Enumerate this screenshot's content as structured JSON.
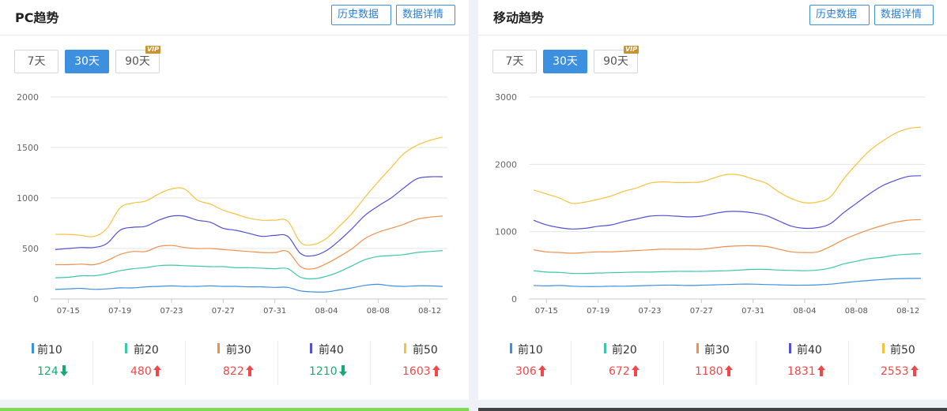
{
  "colors": {
    "top10": "#3d8fe0",
    "top20": "#3cc8a8",
    "top30": "#f0904c",
    "top40": "#5050d8",
    "top50": "#f5c23c",
    "up": "#f04848",
    "down": "#19a974",
    "accent": "#3d8fe0"
  },
  "pc": {
    "title": "PC趋势",
    "history_label": "历史数据",
    "detail_label": "数据详情",
    "periods": [
      "7天",
      "30天",
      "90天"
    ],
    "vip_label": "VIP",
    "legend": [
      {
        "label": "前10",
        "value": "124",
        "trend": "down"
      },
      {
        "label": "前20",
        "value": "480",
        "trend": "up"
      },
      {
        "label": "前30",
        "value": "822",
        "trend": "up"
      },
      {
        "label": "前40",
        "value": "1210",
        "trend": "down"
      },
      {
        "label": "前50",
        "value": "1603",
        "trend": "up"
      }
    ]
  },
  "mobile": {
    "title": "移动趋势",
    "history_label": "历史数据",
    "detail_label": "数据详情",
    "periods": [
      "7天",
      "30天",
      "90天"
    ],
    "vip_label": "VIP",
    "legend": [
      {
        "label": "前10",
        "value": "306",
        "trend": "up"
      },
      {
        "label": "前20",
        "value": "672",
        "trend": "up"
      },
      {
        "label": "前30",
        "value": "1180",
        "trend": "up"
      },
      {
        "label": "前40",
        "value": "1831",
        "trend": "up"
      },
      {
        "label": "前50",
        "value": "2553",
        "trend": "up"
      }
    ]
  },
  "chart_data": [
    {
      "type": "line",
      "title": "PC趋势",
      "ylim": [
        0,
        2000
      ],
      "yticks": [
        "0",
        "500",
        "1000",
        "1500",
        "2000"
      ],
      "x_tick_labels": [
        "07-15",
        "07-19",
        "07-23",
        "07-27",
        "07-31",
        "08-04",
        "08-08",
        "08-12"
      ],
      "x": [
        "07-14",
        "07-15",
        "07-16",
        "07-17",
        "07-18",
        "07-19",
        "07-20",
        "07-21",
        "07-22",
        "07-23",
        "07-24",
        "07-25",
        "07-26",
        "07-27",
        "07-28",
        "07-29",
        "07-30",
        "07-31",
        "08-01",
        "08-02",
        "08-03",
        "08-04",
        "08-05",
        "08-06",
        "08-07",
        "08-08",
        "08-09",
        "08-10",
        "08-11",
        "08-12",
        "08-13"
      ],
      "grid": true,
      "series": [
        {
          "name": "前10",
          "values": [
            95,
            100,
            105,
            95,
            100,
            110,
            110,
            120,
            125,
            130,
            125,
            125,
            130,
            125,
            125,
            120,
            120,
            115,
            115,
            80,
            70,
            70,
            90,
            110,
            135,
            145,
            130,
            125,
            130,
            130,
            124
          ]
        },
        {
          "name": "前20",
          "values": [
            210,
            215,
            230,
            230,
            250,
            280,
            300,
            310,
            330,
            335,
            330,
            325,
            320,
            320,
            310,
            310,
            305,
            300,
            300,
            215,
            200,
            225,
            270,
            330,
            390,
            420,
            430,
            440,
            460,
            470,
            480
          ]
        },
        {
          "name": "前30",
          "values": [
            340,
            340,
            345,
            340,
            380,
            440,
            470,
            470,
            520,
            530,
            510,
            500,
            500,
            490,
            480,
            470,
            460,
            460,
            470,
            320,
            300,
            350,
            420,
            500,
            600,
            660,
            700,
            740,
            790,
            810,
            822
          ]
        },
        {
          "name": "前40",
          "values": [
            490,
            500,
            510,
            510,
            550,
            680,
            710,
            720,
            780,
            820,
            820,
            780,
            760,
            700,
            680,
            650,
            620,
            630,
            620,
            450,
            430,
            480,
            580,
            700,
            830,
            920,
            1000,
            1100,
            1190,
            1210,
            1210
          ]
        },
        {
          "name": "前50",
          "values": [
            640,
            640,
            630,
            620,
            700,
            900,
            950,
            970,
            1040,
            1090,
            1090,
            980,
            940,
            880,
            840,
            800,
            780,
            780,
            770,
            560,
            540,
            600,
            720,
            850,
            1010,
            1160,
            1300,
            1440,
            1520,
            1570,
            1603
          ]
        }
      ]
    },
    {
      "type": "line",
      "title": "移动趋势",
      "ylim": [
        0,
        3000
      ],
      "yticks": [
        "0",
        "1000",
        "2000",
        "3000"
      ],
      "x_tick_labels": [
        "07-15",
        "07-19",
        "07-23",
        "07-27",
        "07-31",
        "08-04",
        "08-08",
        "08-12"
      ],
      "x": [
        "07-14",
        "07-15",
        "07-16",
        "07-17",
        "07-18",
        "07-19",
        "07-20",
        "07-21",
        "07-22",
        "07-23",
        "07-24",
        "07-25",
        "07-26",
        "07-27",
        "07-28",
        "07-29",
        "07-30",
        "07-31",
        "08-01",
        "08-02",
        "08-03",
        "08-04",
        "08-05",
        "08-06",
        "08-07",
        "08-08",
        "08-09",
        "08-10",
        "08-11",
        "08-12",
        "08-13"
      ],
      "grid": true,
      "series": [
        {
          "name": "前10",
          "values": [
            200,
            195,
            200,
            190,
            185,
            185,
            190,
            190,
            195,
            200,
            205,
            205,
            200,
            205,
            210,
            215,
            220,
            220,
            215,
            210,
            205,
            205,
            210,
            220,
            240,
            260,
            275,
            290,
            300,
            305,
            306
          ]
        },
        {
          "name": "前20",
          "values": [
            420,
            400,
            395,
            380,
            380,
            385,
            390,
            395,
            400,
            400,
            405,
            410,
            410,
            410,
            415,
            420,
            430,
            440,
            440,
            430,
            425,
            420,
            430,
            460,
            520,
            560,
            600,
            620,
            650,
            665,
            672
          ]
        },
        {
          "name": "前30",
          "values": [
            730,
            700,
            690,
            680,
            690,
            700,
            700,
            710,
            720,
            730,
            740,
            740,
            740,
            740,
            760,
            780,
            790,
            790,
            780,
            740,
            700,
            690,
            700,
            780,
            880,
            960,
            1030,
            1090,
            1140,
            1170,
            1180
          ]
        },
        {
          "name": "前40",
          "values": [
            1170,
            1100,
            1060,
            1040,
            1050,
            1080,
            1100,
            1150,
            1190,
            1230,
            1240,
            1230,
            1220,
            1230,
            1270,
            1300,
            1300,
            1280,
            1240,
            1160,
            1080,
            1050,
            1060,
            1120,
            1280,
            1420,
            1560,
            1680,
            1760,
            1820,
            1831
          ]
        },
        {
          "name": "前50",
          "values": [
            1620,
            1560,
            1500,
            1420,
            1440,
            1480,
            1530,
            1600,
            1650,
            1720,
            1740,
            1730,
            1730,
            1740,
            1800,
            1850,
            1840,
            1780,
            1720,
            1590,
            1490,
            1430,
            1440,
            1520,
            1780,
            2000,
            2200,
            2340,
            2460,
            2530,
            2553
          ]
        }
      ]
    }
  ]
}
